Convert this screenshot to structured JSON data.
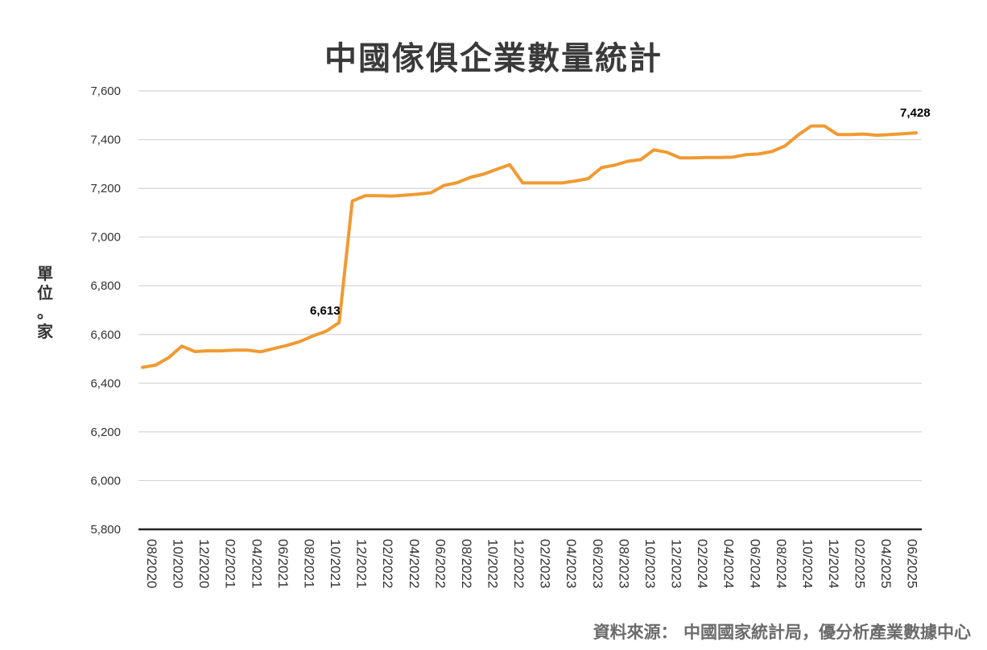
{
  "chart_data": {
    "type": "line",
    "title": "中國傢俱企業數量統計",
    "ylabel": [
      "單",
      "位",
      "。",
      "家"
    ],
    "source": "資料來源： 中國國家統計局，優分析產業數據中心",
    "ylim": [
      5800,
      7600
    ],
    "yticks": [
      "5,800",
      "6,000",
      "6,200",
      "6,400",
      "6,600",
      "6,800",
      "7,000",
      "7,200",
      "7,400",
      "7,600"
    ],
    "ytick_values": [
      5800,
      6000,
      6200,
      6400,
      6600,
      6800,
      7000,
      7200,
      7400,
      7600
    ],
    "xticks": [
      "08/2020",
      "10/2020",
      "12/2020",
      "02/2021",
      "04/2021",
      "06/2021",
      "08/2021",
      "10/2021",
      "12/2021",
      "02/2022",
      "04/2022",
      "06/2022",
      "08/2022",
      "10/2022",
      "12/2022",
      "02/2023",
      "04/2023",
      "06/2023",
      "08/2023",
      "10/2023",
      "12/2023",
      "02/2024",
      "04/2024",
      "06/2024",
      "08/2024",
      "10/2024",
      "12/2024",
      "02/2025",
      "04/2025",
      "06/2025"
    ],
    "x": [
      "2020-08",
      "2020-09",
      "2020-10",
      "2020-11",
      "2020-12",
      "2021-01",
      "2021-02",
      "2021-03",
      "2021-04",
      "2021-05",
      "2021-06",
      "2021-07",
      "2021-08",
      "2021-09",
      "2021-10",
      "2021-11",
      "2021-12",
      "2022-01",
      "2022-02",
      "2022-03",
      "2022-04",
      "2022-05",
      "2022-06",
      "2022-07",
      "2022-08",
      "2022-09",
      "2022-10",
      "2022-11",
      "2022-12",
      "2023-01",
      "2023-02",
      "2023-03",
      "2023-04",
      "2023-05",
      "2023-06",
      "2023-07",
      "2023-08",
      "2023-09",
      "2023-10",
      "2023-11",
      "2023-12",
      "2024-01",
      "2024-02",
      "2024-03",
      "2024-04",
      "2024-05",
      "2024-06",
      "2024-07",
      "2024-08",
      "2024-09",
      "2024-10",
      "2024-11",
      "2024-12",
      "2025-01",
      "2025-02",
      "2025-03",
      "2025-04",
      "2025-05",
      "2025-06",
      "2025-07"
    ],
    "series": [
      {
        "color": "#f09a32",
        "values": [
          6465,
          6474,
          6505,
          6552,
          6530,
          6533,
          6533,
          6536,
          6536,
          6529,
          6542,
          6555,
          6571,
          6594,
          6613,
          6649,
          7148,
          7170,
          7170,
          7168,
          7172,
          7176,
          7182,
          7212,
          7223,
          7245,
          7258,
          7278,
          7297,
          7222,
          7222,
          7222,
          7222,
          7230,
          7240,
          7285,
          7295,
          7311,
          7318,
          7358,
          7348,
          7325,
          7325,
          7327,
          7327,
          7328,
          7338,
          7341,
          7351,
          7374,
          7419,
          7456,
          7456,
          7421,
          7421,
          7423,
          7418,
          7421,
          7424,
          7428
        ]
      }
    ],
    "annotations": [
      {
        "label": "6,613",
        "x": "2021-10",
        "value": 6613
      },
      {
        "label": "7,428",
        "x": "2025-07",
        "value": 7428
      }
    ],
    "grid": true
  }
}
